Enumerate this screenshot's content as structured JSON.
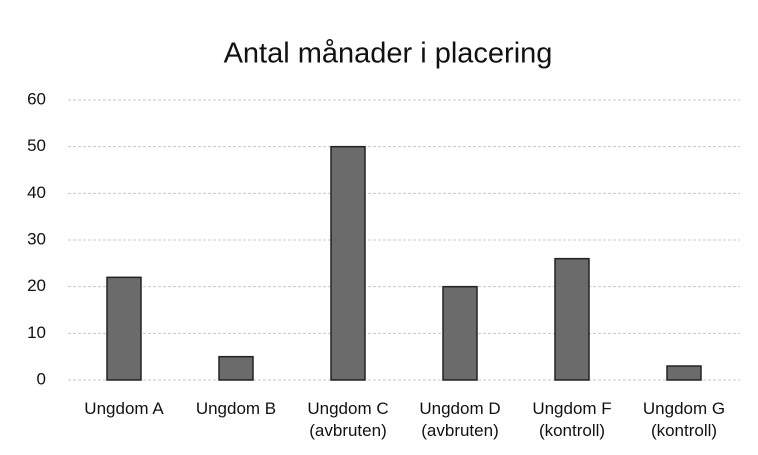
{
  "chart_data": {
    "type": "bar",
    "title": "Antal månader i placering",
    "categories": [
      "Ungdom A",
      "Ungdom B",
      "Ungdom C (avbruten)",
      "Ungdom D (avbruten)",
      "Ungdom F (kontroll)",
      "Ungdom G (kontroll)"
    ],
    "values": [
      22,
      5,
      50,
      20,
      26,
      3
    ],
    "color": "#6b6b6b",
    "ylim": [
      0,
      60
    ],
    "yticks": [
      0,
      10,
      20,
      30,
      40,
      50,
      60
    ],
    "grid": true
  }
}
